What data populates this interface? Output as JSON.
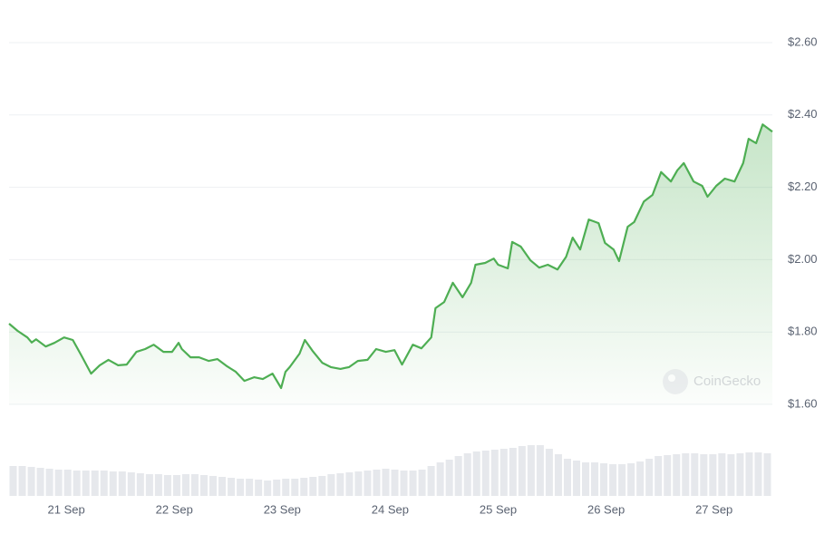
{
  "chart_data": {
    "type": "line",
    "color": "#4eae53",
    "x": [
      20.47,
      20.55,
      20.64,
      20.68,
      20.72,
      20.81,
      20.89,
      20.98,
      21.06,
      21.14,
      21.23,
      21.31,
      21.39,
      21.48,
      21.56,
      21.65,
      21.73,
      21.81,
      21.9,
      21.98,
      22.04,
      22.07,
      22.15,
      22.23,
      22.32,
      22.4,
      22.49,
      22.57,
      22.65,
      22.74,
      22.82,
      22.91,
      22.99,
      23.03,
      23.07,
      23.16,
      23.21,
      23.28,
      23.37,
      23.45,
      23.54,
      23.62,
      23.7,
      23.79,
      23.87,
      23.96,
      24.04,
      24.11,
      24.21,
      24.29,
      24.38,
      24.42,
      24.5,
      24.58,
      24.67,
      24.75,
      24.79,
      24.88,
      24.96,
      25.0,
      25.09,
      25.13,
      25.21,
      25.3,
      25.38,
      25.46,
      25.55,
      25.63,
      25.69,
      25.76,
      25.84,
      25.93,
      25.99,
      26.07,
      26.12,
      26.2,
      26.26,
      26.35,
      26.43,
      26.51,
      26.6,
      26.66,
      26.72,
      26.81,
      26.89,
      26.94,
      27.02,
      27.1,
      27.19,
      27.27,
      27.32,
      27.39,
      27.45,
      27.54
    ],
    "values": [
      1.823,
      1.803,
      1.785,
      1.771,
      1.78,
      1.76,
      1.77,
      1.785,
      1.778,
      1.735,
      1.685,
      1.708,
      1.723,
      1.708,
      1.71,
      1.745,
      1.753,
      1.765,
      1.745,
      1.745,
      1.77,
      1.753,
      1.73,
      1.73,
      1.72,
      1.725,
      1.705,
      1.69,
      1.665,
      1.675,
      1.67,
      1.685,
      1.645,
      1.69,
      1.703,
      1.74,
      1.778,
      1.748,
      1.715,
      1.703,
      1.698,
      1.703,
      1.72,
      1.723,
      1.753,
      1.745,
      1.75,
      1.71,
      1.765,
      1.755,
      1.785,
      1.866,
      1.883,
      1.936,
      1.896,
      1.936,
      1.986,
      1.991,
      2.003,
      1.986,
      1.976,
      2.049,
      2.036,
      1.998,
      1.978,
      1.986,
      1.973,
      2.008,
      2.061,
      2.028,
      2.111,
      2.101,
      2.046,
      2.028,
      1.996,
      2.091,
      2.104,
      2.161,
      2.179,
      2.242,
      2.216,
      2.247,
      2.267,
      2.216,
      2.204,
      2.174,
      2.204,
      2.224,
      2.216,
      2.267,
      2.334,
      2.322,
      2.374,
      2.354
    ],
    "xlim": [
      20.47,
      27.54
    ],
    "xticks": [
      {
        "value": 21,
        "label": "21 Sep"
      },
      {
        "value": 22,
        "label": "22 Sep"
      },
      {
        "value": 23,
        "label": "23 Sep"
      },
      {
        "value": 24,
        "label": "24 Sep"
      },
      {
        "value": 25,
        "label": "25 Sep"
      },
      {
        "value": 26,
        "label": "26 Sep"
      },
      {
        "value": 27,
        "label": "27 Sep"
      }
    ],
    "ylim": [
      1.6,
      2.6
    ],
    "yticks": [
      {
        "value": 1.6,
        "label": "$1.60"
      },
      {
        "value": 1.8,
        "label": "$1.80"
      },
      {
        "value": 2.0,
        "label": "$2.00"
      },
      {
        "value": 2.2,
        "label": "$2.20"
      },
      {
        "value": 2.4,
        "label": "$2.40"
      },
      {
        "value": 2.6,
        "label": "$2.60"
      }
    ],
    "grid": true,
    "volume": {
      "color": "#e6e8ec",
      "ylim": [
        0,
        60
      ],
      "values": [
        33,
        33,
        32,
        31,
        30,
        29,
        29,
        28,
        28,
        28,
        28,
        27,
        27,
        26,
        25,
        24,
        24,
        23,
        23,
        24,
        24,
        23,
        22,
        21,
        20,
        19,
        19,
        18,
        17,
        18,
        19,
        19,
        20,
        21,
        22,
        24,
        25,
        26,
        27,
        28,
        29,
        30,
        29,
        28,
        28,
        29,
        33,
        37,
        40,
        44,
        47,
        49,
        50,
        51,
        52,
        53,
        55,
        56,
        56,
        52,
        46,
        41,
        39,
        37,
        37,
        36,
        35,
        35,
        36,
        38,
        41,
        44,
        45,
        46,
        47,
        47,
        46,
        46,
        47,
        46,
        47,
        48,
        48,
        47
      ]
    },
    "watermark": "CoinGecko"
  }
}
